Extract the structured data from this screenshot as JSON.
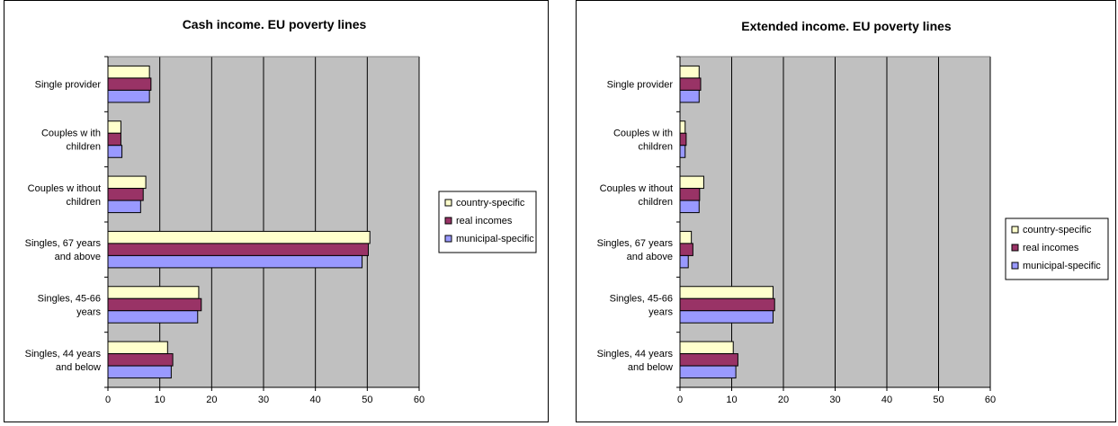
{
  "chart_data": [
    {
      "type": "bar",
      "orientation": "horizontal",
      "title": "Cash income. EU poverty lines",
      "categories": [
        "Single provider",
        "Couples with children",
        "Couples without children",
        "Singles, 67 years and above",
        "Singles, 45-66 years",
        "Singles, 44 years and below"
      ],
      "series": [
        {
          "name": "country-specific",
          "color": "#FFFFCC",
          "values": [
            8.0,
            2.5,
            7.3,
            50.5,
            17.5,
            11.5
          ]
        },
        {
          "name": "real incomes",
          "color": "#993366",
          "values": [
            8.3,
            2.5,
            6.8,
            50.2,
            18.0,
            12.5
          ]
        },
        {
          "name": "municipal-specific",
          "color": "#9999FF",
          "values": [
            8.0,
            2.7,
            6.3,
            49.0,
            17.3,
            12.2
          ]
        }
      ],
      "xlim": [
        0,
        60
      ],
      "xticks": [
        0,
        10,
        20,
        30,
        40,
        50,
        60
      ],
      "grid": true,
      "legend": "right"
    },
    {
      "type": "bar",
      "orientation": "horizontal",
      "title": "Extended income. EU poverty lines",
      "categories": [
        "Single provider",
        "Couples with children",
        "Couples without children",
        "Singles, 67 years and above",
        "Singles, 45-66 years",
        "Singles, 44 years and below"
      ],
      "series": [
        {
          "name": "country-specific",
          "color": "#FFFFCC",
          "values": [
            3.7,
            1.0,
            4.6,
            2.2,
            18.0,
            10.3
          ]
        },
        {
          "name": "real incomes",
          "color": "#993366",
          "values": [
            4.0,
            1.2,
            3.8,
            2.5,
            18.3,
            11.2
          ]
        },
        {
          "name": "municipal-specific",
          "color": "#9999FF",
          "values": [
            3.7,
            1.0,
            3.7,
            1.6,
            18.0,
            10.8
          ]
        }
      ],
      "xlim": [
        0,
        60
      ],
      "xticks": [
        0,
        10,
        20,
        30,
        40,
        50,
        60
      ],
      "grid": true,
      "legend": "right"
    }
  ],
  "category_display_lines": [
    [
      "Single provider"
    ],
    [
      "Couples w ith",
      "children"
    ],
    [
      "Couples w ithout",
      "children"
    ],
    [
      "Singles, 67 years",
      "and above"
    ],
    [
      "Singles, 45-66",
      "years"
    ],
    [
      "Singles, 44 years",
      "and below"
    ]
  ]
}
